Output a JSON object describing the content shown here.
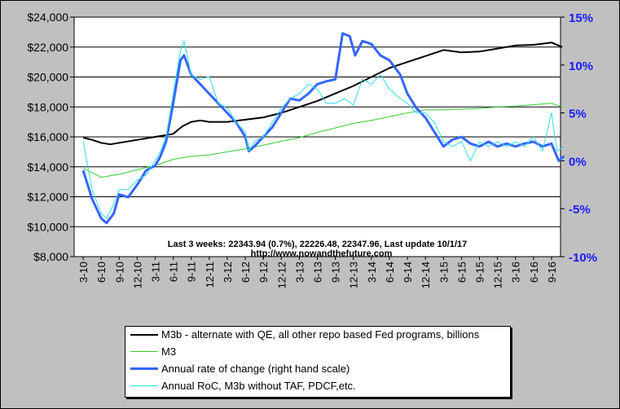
{
  "chart_data": {
    "type": "line",
    "left_axis": {
      "ticks": [
        "$8,000",
        "$10,000",
        "$12,000",
        "$14,000",
        "$16,000",
        "$18,000",
        "$20,000",
        "$22,000",
        "$24,000"
      ],
      "ylim": [
        8000,
        24000
      ]
    },
    "right_axis": {
      "ticks": [
        "-10%",
        "-5%",
        "0%",
        "5%",
        "10%",
        "15%"
      ],
      "ylim": [
        -10,
        15
      ]
    },
    "x_ticks": [
      "3-10",
      "6-10",
      "9-10",
      "12-10",
      "3-11",
      "6-11",
      "9-11",
      "12-11",
      "3-12",
      "6-12",
      "9-12",
      "12-12",
      "3-13",
      "6-13",
      "9-13",
      "12-13",
      "3-14",
      "6-14",
      "9-14",
      "12-14",
      "3-15",
      "6-15",
      "9-15",
      "12-15",
      "3-16",
      "6-16",
      "9-16"
    ],
    "annotation_line1": "Last 3 weeks: 22343.94 (0.7%), 22226.48, 22347.96, Last update 10/1/17",
    "annotation_line2": "http://www.nowandthefuture.com",
    "series": [
      {
        "name": "M3b - alternate with QE, all other repo based Fed programs, billions",
        "color": "#000000",
        "width": 2,
        "axis": "left",
        "points": [
          [
            0,
            15950
          ],
          [
            0.5,
            15800
          ],
          [
            1,
            15600
          ],
          [
            1.5,
            15500
          ],
          [
            2,
            15600
          ],
          [
            3,
            15800
          ],
          [
            4,
            16000
          ],
          [
            5,
            16200
          ],
          [
            5.5,
            16700
          ],
          [
            6,
            17000
          ],
          [
            6.5,
            17100
          ],
          [
            7,
            17000
          ],
          [
            8,
            17000
          ],
          [
            9,
            17150
          ],
          [
            10,
            17300
          ],
          [
            11,
            17600
          ],
          [
            12,
            18000
          ],
          [
            13,
            18400
          ],
          [
            14,
            18900
          ],
          [
            15,
            19400
          ],
          [
            16,
            20000
          ],
          [
            17,
            20600
          ],
          [
            18,
            21000
          ],
          [
            19,
            21400
          ],
          [
            20,
            21800
          ],
          [
            21,
            21650
          ],
          [
            22,
            21700
          ],
          [
            23,
            21900
          ],
          [
            24,
            22100
          ],
          [
            25,
            22150
          ],
          [
            26,
            22300
          ],
          [
            26.6,
            22000
          ]
        ]
      },
      {
        "name": "M3",
        "color": "#33cc33",
        "width": 1,
        "axis": "left",
        "points": [
          [
            0,
            13900
          ],
          [
            1,
            13300
          ],
          [
            2,
            13500
          ],
          [
            3,
            13800
          ],
          [
            4,
            14100
          ],
          [
            5,
            14500
          ],
          [
            6,
            14700
          ],
          [
            7,
            14800
          ],
          [
            8,
            15000
          ],
          [
            9,
            15200
          ],
          [
            10,
            15450
          ],
          [
            11,
            15700
          ],
          [
            12,
            15950
          ],
          [
            13,
            16300
          ],
          [
            14,
            16600
          ],
          [
            15,
            16900
          ],
          [
            16,
            17100
          ],
          [
            17,
            17350
          ],
          [
            18,
            17600
          ],
          [
            19,
            17800
          ],
          [
            20,
            17800
          ],
          [
            21,
            17850
          ],
          [
            22,
            17900
          ],
          [
            23,
            18000
          ],
          [
            24,
            18050
          ],
          [
            25,
            18150
          ],
          [
            26,
            18250
          ],
          [
            26.6,
            18000
          ]
        ]
      },
      {
        "name": "Annual rate of change (right hand scale)",
        "color": "#3366ff",
        "width": 3,
        "axis": "right",
        "points": [
          [
            0,
            -1
          ],
          [
            0.5,
            -4
          ],
          [
            1,
            -6
          ],
          [
            1.3,
            -6.5
          ],
          [
            1.7,
            -5.5
          ],
          [
            2,
            -3.5
          ],
          [
            2.5,
            -3.8
          ],
          [
            3,
            -2.5
          ],
          [
            3.5,
            -1
          ],
          [
            4,
            -0.5
          ],
          [
            4.3,
            0.5
          ],
          [
            4.6,
            2
          ],
          [
            5,
            6
          ],
          [
            5.4,
            10.5
          ],
          [
            5.6,
            11
          ],
          [
            6,
            9
          ],
          [
            6.5,
            8
          ],
          [
            7,
            7
          ],
          [
            7.5,
            6
          ],
          [
            8,
            5
          ],
          [
            8.5,
            4
          ],
          [
            9,
            2.5
          ],
          [
            9.2,
            1
          ],
          [
            9.5,
            1.5
          ],
          [
            10,
            2.5
          ],
          [
            10.5,
            3.5
          ],
          [
            11,
            5
          ],
          [
            11.5,
            6.5
          ],
          [
            12,
            6.3
          ],
          [
            12.5,
            7
          ],
          [
            13,
            8
          ],
          [
            13.5,
            8.3
          ],
          [
            14,
            8.5
          ],
          [
            14.4,
            13.3
          ],
          [
            14.8,
            13
          ],
          [
            15.1,
            11
          ],
          [
            15.5,
            12.5
          ],
          [
            16,
            12.2
          ],
          [
            16.5,
            11
          ],
          [
            17,
            10.5
          ],
          [
            17.6,
            9
          ],
          [
            18,
            7
          ],
          [
            18.5,
            5.5
          ],
          [
            19,
            4.5
          ],
          [
            19.5,
            3
          ],
          [
            20,
            1.5
          ],
          [
            20.5,
            2.2
          ],
          [
            21,
            2.5
          ],
          [
            21.5,
            1.8
          ],
          [
            22,
            1.5
          ],
          [
            22.5,
            2
          ],
          [
            23,
            1.5
          ],
          [
            23.5,
            1.8
          ],
          [
            24,
            1.5
          ],
          [
            24.5,
            1.8
          ],
          [
            25,
            2
          ],
          [
            25.5,
            1.5
          ],
          [
            26,
            1.8
          ],
          [
            26.4,
            0
          ],
          [
            26.7,
            0.5
          ]
        ]
      },
      {
        "name": "Annual RoC, M3b without TAF, PDCF,etc.",
        "color": "#33ddee",
        "width": 1,
        "axis": "right",
        "points": [
          [
            0,
            2
          ],
          [
            0.5,
            -3
          ],
          [
            1,
            -5.5
          ],
          [
            1.3,
            -6
          ],
          [
            1.7,
            -4.5
          ],
          [
            2,
            -3
          ],
          [
            2.5,
            -3
          ],
          [
            3,
            -2
          ],
          [
            3.5,
            -1.5
          ],
          [
            4,
            0
          ],
          [
            4.3,
            1
          ],
          [
            4.6,
            2.5
          ],
          [
            5,
            7
          ],
          [
            5.4,
            11.5
          ],
          [
            5.6,
            12.5
          ],
          [
            6,
            9
          ],
          [
            6.5,
            8.5
          ],
          [
            7,
            8.8
          ],
          [
            7.5,
            6
          ],
          [
            8,
            5.5
          ],
          [
            8.5,
            4
          ],
          [
            9,
            3
          ],
          [
            9.2,
            1
          ],
          [
            9.5,
            2
          ],
          [
            10,
            2.5
          ],
          [
            10.5,
            4
          ],
          [
            11,
            5.5
          ],
          [
            11.5,
            6.5
          ],
          [
            12,
            7
          ],
          [
            12.5,
            8
          ],
          [
            13,
            7.5
          ],
          [
            13.5,
            6
          ],
          [
            14,
            6
          ],
          [
            14.5,
            6.5
          ],
          [
            15,
            5.8
          ],
          [
            15.5,
            8.5
          ],
          [
            16,
            8
          ],
          [
            16.5,
            9
          ],
          [
            17,
            7.5
          ],
          [
            17.6,
            6.5
          ],
          [
            18,
            6
          ],
          [
            18.5,
            5
          ],
          [
            19,
            5
          ],
          [
            19.5,
            4
          ],
          [
            20,
            2
          ],
          [
            20.5,
            1.5
          ],
          [
            21,
            2
          ],
          [
            21.5,
            0
          ],
          [
            22,
            2
          ],
          [
            22.5,
            1.5
          ],
          [
            23,
            2
          ],
          [
            23.5,
            1.5
          ],
          [
            24,
            2
          ],
          [
            24.5,
            1.5
          ],
          [
            25,
            2.5
          ],
          [
            25.5,
            1
          ],
          [
            26,
            5
          ],
          [
            26.3,
            1
          ],
          [
            26.7,
            1.5
          ]
        ]
      }
    ]
  }
}
